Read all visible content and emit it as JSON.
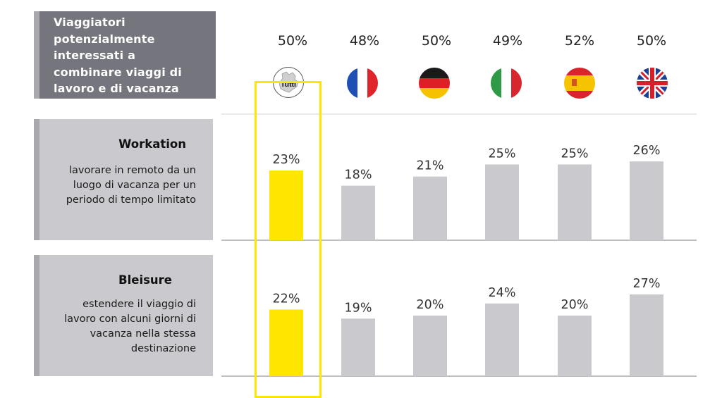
{
  "header": {
    "lines": [
      "Viaggiatori",
      "potenzialmente",
      "interessati a",
      "combinare viaggi di",
      "lavoro e di vacanza"
    ]
  },
  "columns": [
    {
      "flag": "europe-map-icon",
      "label": "Tutti",
      "top_value": "50%"
    },
    {
      "flag": "france-flag-icon",
      "top_value": "48%"
    },
    {
      "flag": "germany-flag-icon",
      "top_value": "50%"
    },
    {
      "flag": "italy-flag-icon",
      "top_value": "49%"
    },
    {
      "flag": "spain-flag-icon",
      "top_value": "52%"
    },
    {
      "flag": "uk-flag-icon",
      "top_value": "50%"
    }
  ],
  "rows": [
    {
      "title": "Workation",
      "desc_lines": [
        "lavorare in remoto da un",
        "luogo di vacanza per un",
        "periodo di tempo limitato"
      ]
    },
    {
      "title": "Bleisure",
      "desc_lines": [
        "estendere il viaggio di",
        "lavoro con alcuni giorni di",
        "vacanza nella stessa",
        "destinazione"
      ]
    }
  ],
  "chart_data": [
    {
      "type": "bar",
      "categories": [
        "Tutti",
        "",
        "",
        "",
        "",
        ""
      ],
      "values": [
        23,
        18,
        21,
        25,
        25,
        26
      ],
      "labels": [
        "23%",
        "18%",
        "21%",
        "25%",
        "25%",
        "26%"
      ],
      "ylim": [
        0,
        30
      ]
    },
    {
      "type": "bar",
      "categories": [
        "Tutti",
        "",
        "",
        "",
        "",
        ""
      ],
      "values": [
        22,
        19,
        20,
        24,
        20,
        27
      ],
      "labels": [
        "22%",
        "19%",
        "20%",
        "24%",
        "20%",
        "27%"
      ],
      "ylim": [
        0,
        30
      ]
    }
  ],
  "colors": {
    "highlight": "#ffe600",
    "bar": "#c9c9ce",
    "header_bg": "#75757d"
  }
}
